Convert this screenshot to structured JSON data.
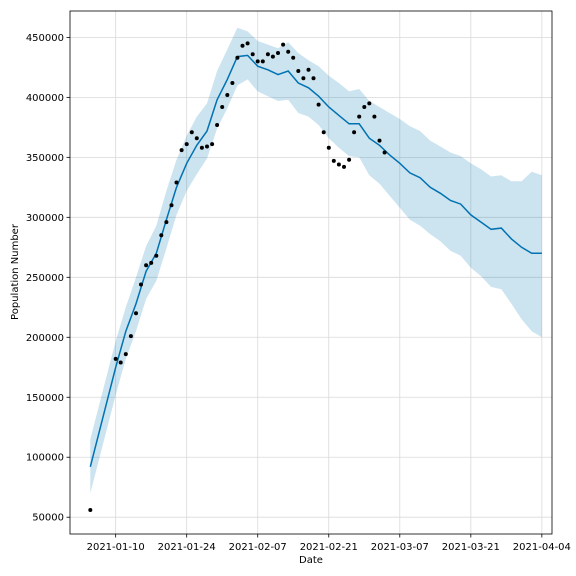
{
  "chart_data": {
    "type": "line",
    "xlabel": "Date",
    "ylabel": "Population Number",
    "x_range": [
      "2021-01-01",
      "2021-04-06"
    ],
    "ylim": [
      36000,
      472000
    ],
    "grid": true,
    "x_ticks": [
      "2021-01-10",
      "2021-01-24",
      "2021-02-07",
      "2021-02-21",
      "2021-03-07",
      "2021-03-21",
      "2021-04-04"
    ],
    "y_ticks": [
      50000,
      100000,
      150000,
      200000,
      250000,
      300000,
      350000,
      400000,
      450000
    ],
    "y_tick_labels": [
      "50000",
      "100000",
      "150000",
      "200000",
      "250000",
      "300000",
      "350000",
      "400000",
      "450000"
    ],
    "colors": {
      "forecast_line": "#0072b2",
      "uncertainty_band": "#0072b2",
      "observed_points": "#000000"
    },
    "series": [
      {
        "kind": "forecast",
        "x": [
          "2021-01-05",
          "2021-01-10",
          "2021-01-12",
          "2021-01-14",
          "2021-01-16",
          "2021-01-18",
          "2021-01-20",
          "2021-01-22",
          "2021-01-24",
          "2021-01-26",
          "2021-01-28",
          "2021-01-30",
          "2021-02-01",
          "2021-02-03",
          "2021-02-05",
          "2021-02-07",
          "2021-02-09",
          "2021-02-11",
          "2021-02-13",
          "2021-02-15",
          "2021-02-17",
          "2021-02-19",
          "2021-02-21",
          "2021-02-23",
          "2021-02-25",
          "2021-02-27",
          "2021-03-01",
          "2021-03-03",
          "2021-03-05",
          "2021-03-07",
          "2021-03-09",
          "2021-03-11",
          "2021-03-13",
          "2021-03-15",
          "2021-03-17",
          "2021-03-19",
          "2021-03-21",
          "2021-03-23",
          "2021-03-25",
          "2021-03-27",
          "2021-03-29",
          "2021-03-31",
          "2021-04-02",
          "2021-04-04"
        ],
        "y": [
          92000,
          175000,
          205000,
          228000,
          255000,
          270000,
          298000,
          325000,
          345000,
          360000,
          372000,
          398000,
          415000,
          434000,
          435000,
          426000,
          423000,
          419000,
          422000,
          412000,
          408000,
          401000,
          392000,
          385000,
          378000,
          378000,
          366000,
          360000,
          352000,
          345000,
          337000,
          333000,
          325000,
          320000,
          314000,
          311000,
          302000,
          296000,
          290000,
          291000,
          282000,
          275000,
          270000,
          270000
        ]
      },
      {
        "kind": "uncertainty",
        "x": [
          "2021-01-05",
          "2021-01-10",
          "2021-01-12",
          "2021-01-14",
          "2021-01-16",
          "2021-01-18",
          "2021-01-20",
          "2021-01-22",
          "2021-01-24",
          "2021-01-26",
          "2021-01-28",
          "2021-01-30",
          "2021-02-01",
          "2021-02-03",
          "2021-02-05",
          "2021-02-07",
          "2021-02-09",
          "2021-02-11",
          "2021-02-13",
          "2021-02-15",
          "2021-02-17",
          "2021-02-19",
          "2021-02-21",
          "2021-02-23",
          "2021-02-25",
          "2021-02-27",
          "2021-03-01",
          "2021-03-03",
          "2021-03-05",
          "2021-03-07",
          "2021-03-09",
          "2021-03-11",
          "2021-03-13",
          "2021-03-15",
          "2021-03-17",
          "2021-03-19",
          "2021-03-21",
          "2021-03-23",
          "2021-03-25",
          "2021-03-27",
          "2021-03-29",
          "2021-03-31",
          "2021-04-02",
          "2021-04-04"
        ],
        "upper": [
          115000,
          197000,
          225000,
          250000,
          276000,
          293000,
          322000,
          348000,
          368000,
          384000,
          395000,
          422000,
          440000,
          458000,
          455000,
          447000,
          444000,
          441000,
          446000,
          437000,
          431000,
          426000,
          418000,
          412000,
          405000,
          407000,
          397000,
          392000,
          387000,
          382000,
          376000,
          372000,
          364000,
          359000,
          354000,
          351000,
          345000,
          340000,
          334000,
          335000,
          330000,
          330000,
          338000,
          335000
        ],
        "lower": [
          70000,
          152000,
          182000,
          205000,
          232000,
          247000,
          274000,
          302000,
          322000,
          336000,
          349000,
          374000,
          391000,
          410000,
          415000,
          405000,
          401000,
          397000,
          398000,
          387000,
          384000,
          377000,
          366000,
          358000,
          351000,
          350000,
          335000,
          328000,
          318000,
          308000,
          298000,
          293000,
          286000,
          280000,
          272000,
          268000,
          258000,
          251000,
          242000,
          240000,
          228000,
          215000,
          205000,
          200000
        ]
      },
      {
        "kind": "observed",
        "x": [
          "2021-01-05",
          "2021-01-10",
          "2021-01-11",
          "2021-01-12",
          "2021-01-13",
          "2021-01-14",
          "2021-01-15",
          "2021-01-16",
          "2021-01-17",
          "2021-01-18",
          "2021-01-19",
          "2021-01-20",
          "2021-01-21",
          "2021-01-22",
          "2021-01-23",
          "2021-01-24",
          "2021-01-25",
          "2021-01-26",
          "2021-01-27",
          "2021-01-28",
          "2021-01-29",
          "2021-01-30",
          "2021-01-31",
          "2021-02-01",
          "2021-02-02",
          "2021-02-03",
          "2021-02-04",
          "2021-02-05",
          "2021-02-06",
          "2021-02-07",
          "2021-02-08",
          "2021-02-09",
          "2021-02-10",
          "2021-02-11",
          "2021-02-12",
          "2021-02-13",
          "2021-02-14",
          "2021-02-15",
          "2021-02-16",
          "2021-02-17",
          "2021-02-18",
          "2021-02-19",
          "2021-02-20",
          "2021-02-21",
          "2021-02-22",
          "2021-02-23",
          "2021-02-24",
          "2021-02-25",
          "2021-02-26",
          "2021-02-27",
          "2021-02-28",
          "2021-03-01",
          "2021-03-02",
          "2021-03-03",
          "2021-03-04"
        ],
        "y": [
          56000,
          182000,
          179000,
          186000,
          201000,
          220000,
          244000,
          260000,
          262000,
          268000,
          285000,
          296000,
          310000,
          329000,
          356000,
          361000,
          371000,
          366000,
          358000,
          359000,
          361000,
          377000,
          392000,
          402000,
          412000,
          433000,
          443000,
          445000,
          436000,
          430000,
          430000,
          436000,
          434000,
          437000,
          444000,
          438000,
          433000,
          422000,
          416000,
          423000,
          416000,
          394000,
          371000,
          358000,
          347000,
          344000,
          342000,
          348000,
          371000,
          384000,
          392000,
          395000,
          384000,
          364000,
          354000
        ]
      }
    ]
  }
}
